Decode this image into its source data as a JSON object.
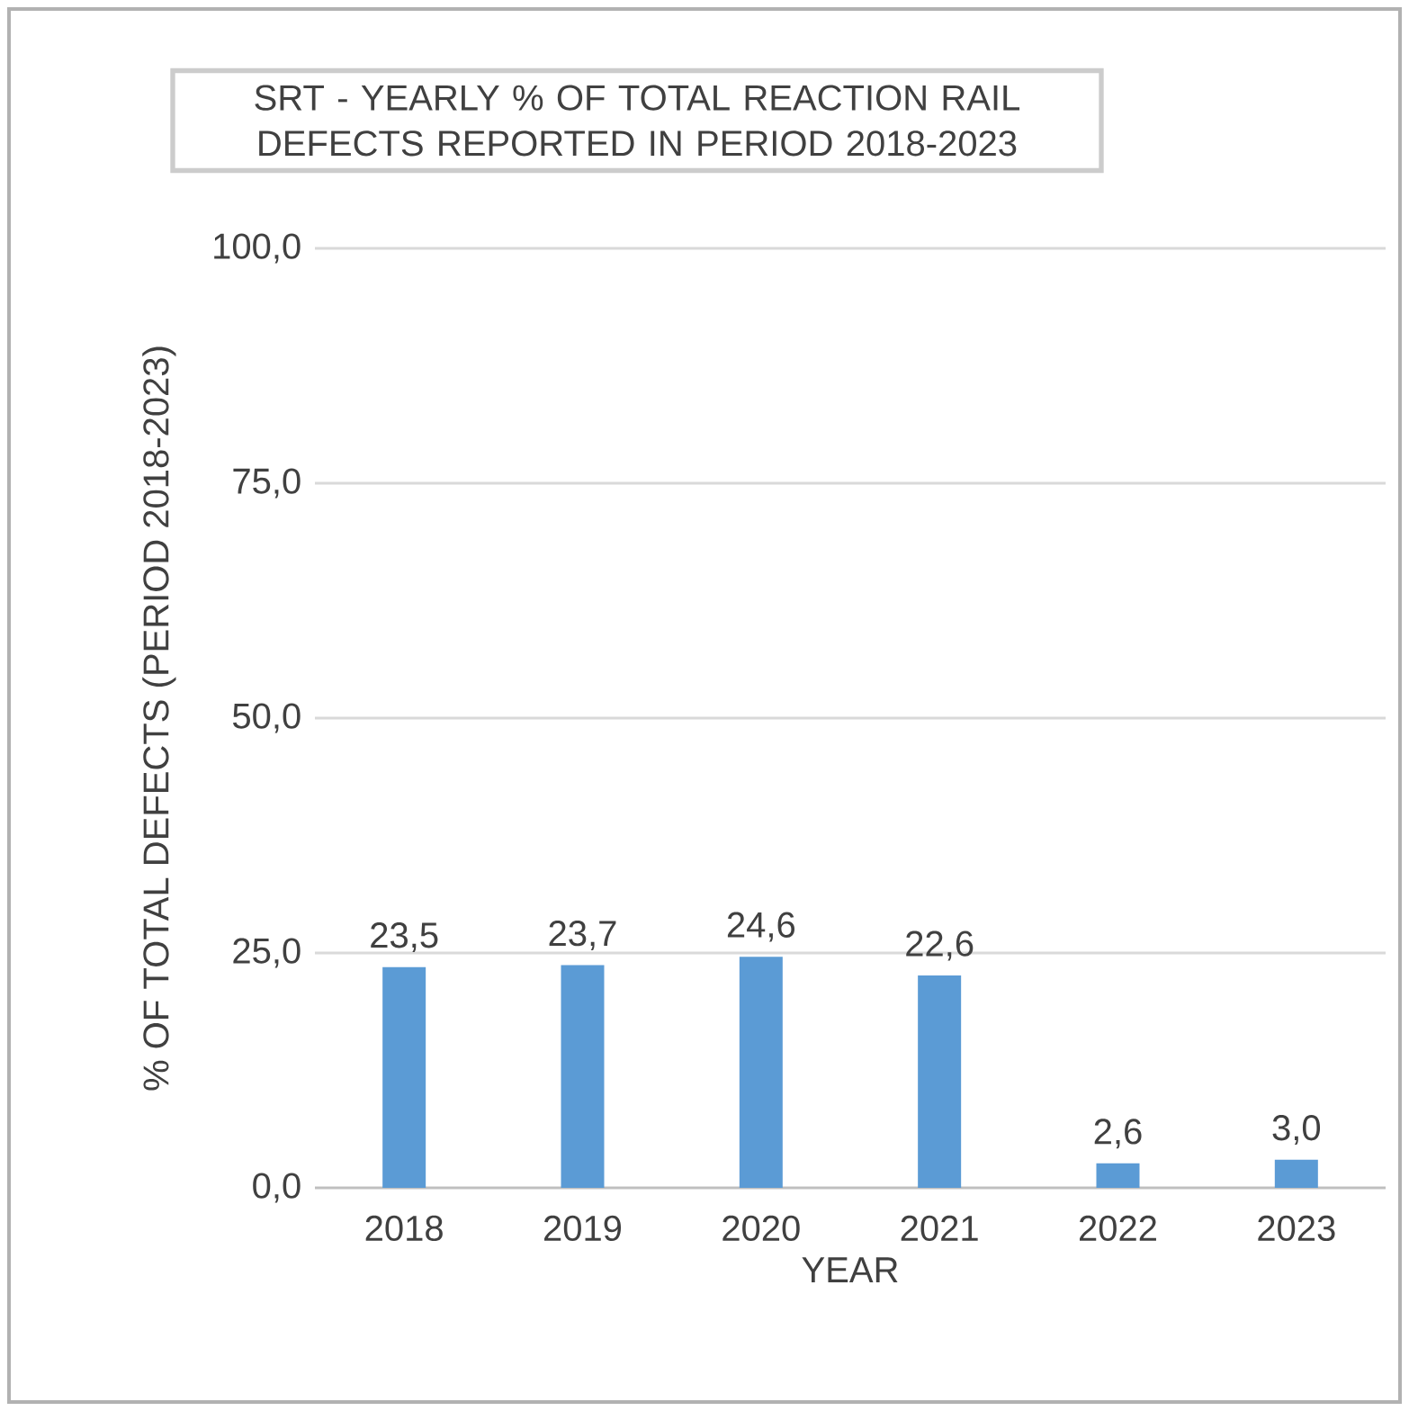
{
  "chart_data": {
    "type": "bar",
    "title": "SRT - YEARLY % OF TOTAL REACTION RAIL DEFECTS REPORTED IN PERIOD 2018-2023",
    "xlabel": "YEAR",
    "ylabel": "% OF TOTAL DEFECTS (PERIOD 2018-2023)",
    "categories": [
      "2018",
      "2019",
      "2020",
      "2021",
      "2022",
      "2023"
    ],
    "values": [
      23.5,
      23.7,
      24.6,
      22.6,
      2.6,
      3.0
    ],
    "value_labels": [
      "23,5",
      "23,7",
      "24,6",
      "22,6",
      "2,6",
      "3,0"
    ],
    "color": "#5b9bd5",
    "ylim": [
      0,
      100
    ],
    "yticks": [
      {
        "value": 0,
        "label": "0,0"
      },
      {
        "value": 25,
        "label": "25,0"
      },
      {
        "value": 50,
        "label": "50,0"
      },
      {
        "value": 75,
        "label": "75,0"
      },
      {
        "value": 100,
        "label": "100,0"
      }
    ],
    "grid": "y"
  }
}
